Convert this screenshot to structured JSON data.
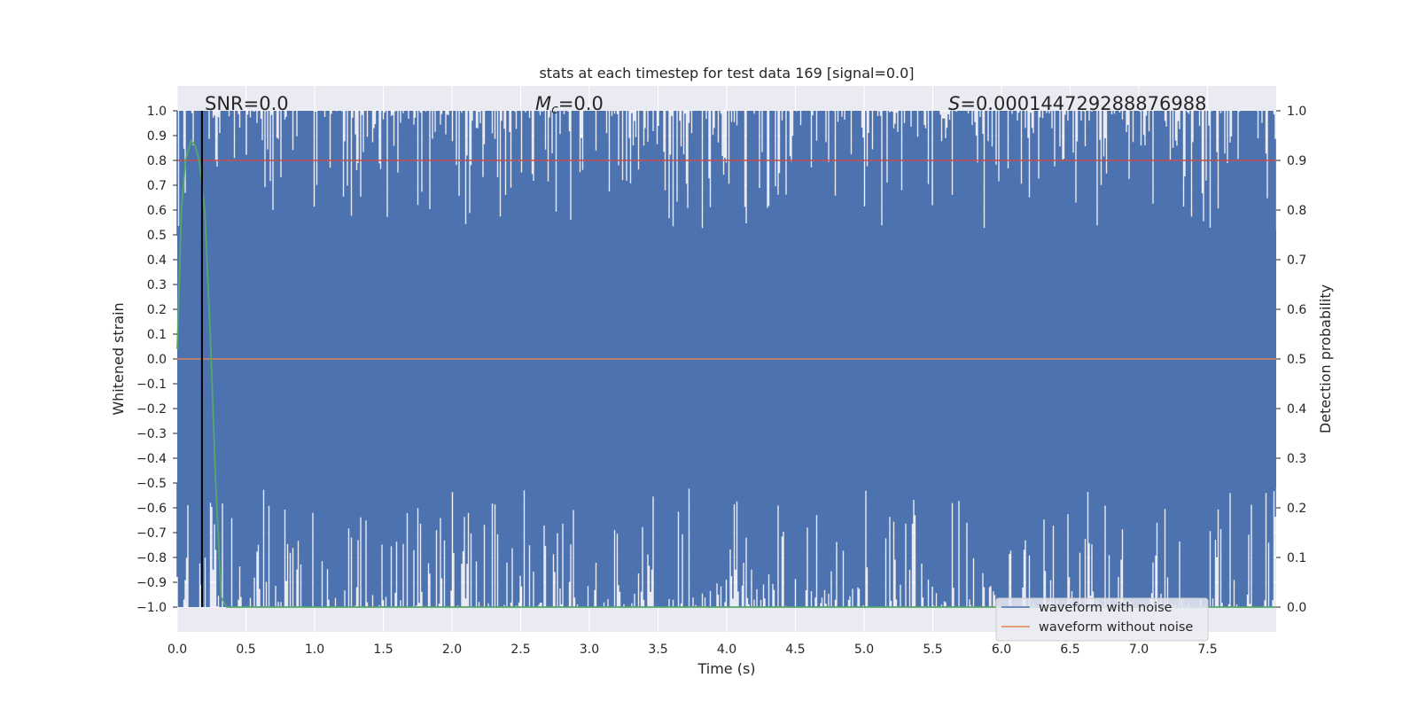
{
  "chart_data": {
    "type": "line",
    "title": "stats at each timestep for test data 169 [signal=0.0]",
    "xlabel": "Time (s)",
    "ylabel": "Whitened strain",
    "ylabel_right": "Detection probability",
    "xlim": [
      0.0,
      8.0
    ],
    "ylim": [
      -1.1,
      1.1
    ],
    "ylim_right": [
      -0.05,
      1.05
    ],
    "xticks": [
      "0.0",
      "0.5",
      "1.0",
      "1.5",
      "2.0",
      "2.5",
      "3.0",
      "3.5",
      "4.0",
      "4.5",
      "5.0",
      "5.5",
      "6.0",
      "6.5",
      "7.0",
      "7.5"
    ],
    "yticks": [
      "1.0",
      "0.9",
      "0.8",
      "0.7",
      "0.6",
      "0.5",
      "0.4",
      "0.3",
      "0.2",
      "0.1",
      "0.0",
      "−0.1",
      "−0.2",
      "−0.3",
      "−0.4",
      "−0.5",
      "−0.6",
      "−0.7",
      "−0.8",
      "−0.9",
      "−1.0"
    ],
    "yticks_right": [
      "1.0",
      "0.9",
      "0.8",
      "0.7",
      "0.6",
      "0.5",
      "0.4",
      "0.3",
      "0.2",
      "0.1",
      "0.0"
    ],
    "grid": true,
    "legend_position": "lower-right",
    "colors": {
      "noise": "#4c72b0",
      "clean": "#dd8452",
      "probability": "#55a868",
      "threshold": "#c44e52",
      "marker": "#000000",
      "axes_bg": "#eaeaf2",
      "grid": "#ffffff"
    },
    "annotations": {
      "snr": "SNR=0.0",
      "mc_symbol": "M",
      "mc_sub": "c",
      "mc_value": "=0.0",
      "s_symbol": "S",
      "s_value": "=0.000144729288876988"
    },
    "series": [
      {
        "name": "waveform with noise",
        "description_values": "whitened noise saturating between -1.0 and 1.0 over 0-8 s",
        "range": [
          -1.0,
          1.0
        ]
      },
      {
        "name": "waveform without noise",
        "x": [
          0.0,
          8.0
        ],
        "y": [
          0.0,
          0.0
        ]
      },
      {
        "axis": "right",
        "x": [
          0.0,
          0.03,
          0.06,
          0.1,
          0.13,
          0.16,
          0.2,
          0.24,
          0.28,
          0.32,
          0.36,
          8.0
        ],
        "y": [
          0.52,
          0.8,
          0.9,
          0.94,
          0.93,
          0.9,
          0.8,
          0.55,
          0.25,
          0.02,
          0.0,
          0.0
        ]
      },
      {
        "axis": "right",
        "x": [
          0.0,
          8.0
        ],
        "y": [
          0.9,
          0.9
        ]
      },
      {
        "x": [
          0.18,
          0.18
        ],
        "y": [
          -1.0,
          1.0
        ]
      }
    ]
  }
}
